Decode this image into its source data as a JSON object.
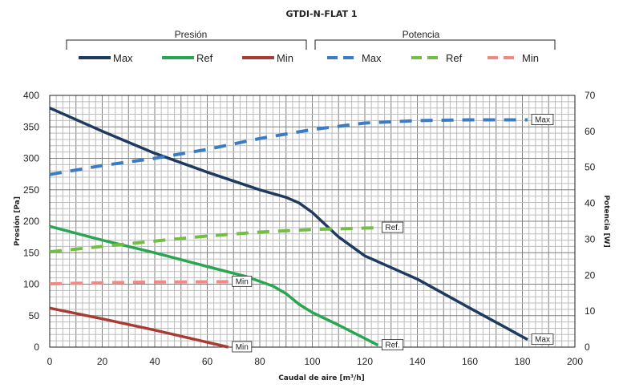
{
  "chart_data": {
    "type": "line",
    "title": "GTDI-N-FLAT 1",
    "xlabel": "Caudal de aire [m³/h]",
    "ylabel_left": "Presión [Pa]",
    "ylabel_right": "Potencia [W]",
    "xlim": [
      0,
      200
    ],
    "ylim_left": [
      0,
      400
    ],
    "ylim_right": [
      0,
      70
    ],
    "x_ticks": [
      0,
      20,
      40,
      60,
      80,
      100,
      120,
      140,
      160,
      180,
      200
    ],
    "y_ticks_left": [
      0,
      50,
      100,
      150,
      200,
      250,
      300,
      350,
      400
    ],
    "y_ticks_right": [
      0,
      10,
      20,
      30,
      40,
      50,
      60,
      70
    ],
    "grid": true,
    "legend": {
      "groups": [
        "Presión",
        "Potencia"
      ],
      "entries": [
        {
          "label": "Max",
          "group": "Presión",
          "color": "#1f3a60",
          "style": "solid"
        },
        {
          "label": "Ref",
          "group": "Presión",
          "color": "#2aa652",
          "style": "solid"
        },
        {
          "label": "Min",
          "group": "Presión",
          "color": "#a83c35",
          "style": "solid"
        },
        {
          "label": "Max",
          "group": "Potencia",
          "color": "#3c7cc4",
          "style": "dashed"
        },
        {
          "label": "Ref",
          "group": "Potencia",
          "color": "#72bf44",
          "style": "dashed"
        },
        {
          "label": "Min",
          "group": "Potencia",
          "color": "#f08a85",
          "style": "dashed"
        }
      ]
    },
    "series": [
      {
        "name": "Max",
        "group": "Presión",
        "axis": "left",
        "color": "#1f3a60",
        "style": "solid",
        "x": [
          0,
          20,
          40,
          60,
          80,
          90,
          95,
          100,
          110,
          120,
          140,
          160,
          182
        ],
        "y": [
          380,
          343,
          308,
          278,
          250,
          238,
          229,
          214,
          175,
          145,
          108,
          62,
          12
        ],
        "end_label": "Max"
      },
      {
        "name": "Ref",
        "group": "Presión",
        "axis": "left",
        "color": "#2aa652",
        "style": "solid",
        "x": [
          0,
          20,
          40,
          60,
          75,
          85,
          90,
          95,
          100,
          110,
          125
        ],
        "y": [
          192,
          170,
          150,
          128,
          112,
          97,
          85,
          68,
          55,
          35,
          3
        ],
        "end_label": "Ref."
      },
      {
        "name": "Min",
        "group": "Presión",
        "axis": "left",
        "color": "#a83c35",
        "style": "solid",
        "x": [
          0,
          20,
          40,
          68
        ],
        "y": [
          62,
          45,
          27,
          0
        ],
        "end_label": "Min"
      },
      {
        "name": "Max",
        "group": "Potencia",
        "axis": "right",
        "color": "#3c7cc4",
        "style": "dashed",
        "x": [
          0,
          20,
          40,
          60,
          80,
          100,
          120,
          140,
          160,
          182
        ],
        "y": [
          48,
          50.5,
          52.5,
          55,
          58,
          60.5,
          62.3,
          63,
          63.2,
          63.2
        ],
        "end_label": "Max"
      },
      {
        "name": "Ref",
        "group": "Potencia",
        "axis": "right",
        "color": "#72bf44",
        "style": "dashed",
        "x": [
          0,
          20,
          40,
          60,
          80,
          100,
          125
        ],
        "y": [
          26.5,
          28,
          29.5,
          30.9,
          32,
          32.7,
          33.2
        ],
        "end_label": "Ref."
      },
      {
        "name": "Min",
        "group": "Potencia",
        "axis": "right",
        "color": "#f08a85",
        "style": "dashed",
        "x": [
          0,
          20,
          40,
          68
        ],
        "y": [
          17.6,
          17.9,
          18.1,
          18.2
        ],
        "end_label": "Min"
      }
    ]
  }
}
